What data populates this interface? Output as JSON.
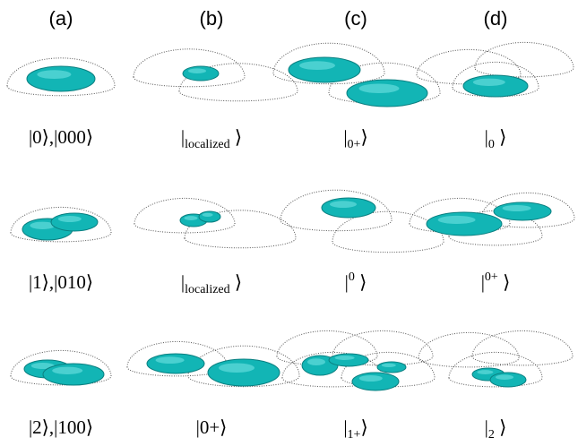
{
  "columns": [
    "(a)",
    "(b)",
    "(c)",
    "(d)"
  ],
  "rows": [
    [
      {
        "text": "|0⟩,|000⟩"
      },
      {
        "open": "|",
        "sub": "localized",
        "close": " ⟩"
      },
      {
        "open": "|",
        "sub": "0+",
        "close": "⟩"
      },
      {
        "open": "|",
        "sub": "0",
        "close": " ⟩"
      }
    ],
    [
      {
        "text": "|1⟩,|010⟩"
      },
      {
        "open": "|",
        "sub": "localized",
        "close": " ⟩"
      },
      {
        "open": "|",
        "sup": "0",
        "close": " ⟩"
      },
      {
        "open": "|",
        "sup": "0+",
        "close": " ⟩"
      }
    ],
    [
      {
        "text": "|2⟩,|100⟩"
      },
      {
        "text": "|0+⟩"
      },
      {
        "open": "|",
        "sub": "1+",
        "close": "⟩"
      },
      {
        "open": "|",
        "sub": "2",
        "close": " ⟩"
      }
    ]
  ]
}
